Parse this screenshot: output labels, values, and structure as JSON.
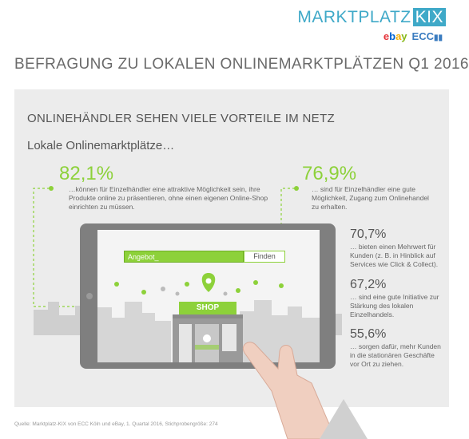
{
  "logo": {
    "title": "MARKTPLATZ",
    "badge": "KIX",
    "ebay": [
      "e",
      "b",
      "a",
      "y"
    ],
    "ecc": "ECC"
  },
  "title": "BEFRAGUNG ZU LOKALEN ONLINEMARKTPLÄTZEN Q1 2016",
  "subtitle": "ONLINEHÄNDLER SEHEN VIELE VORTEILE IM NETZ",
  "lead": "Lokale Onlinemarktplätze…",
  "stats": [
    {
      "value": "82,1%",
      "text": "…können für Einzelhändler eine attraktive Möglichkeit sein, ihre Produkte online zu präsentieren, ohne einen eigenen Online-Shop einrichten zu müssen."
    },
    {
      "value": "76,9%",
      "text": "… sind für Einzelhändler eine gute Möglichkeit, Zugang zum Onlinehandel zu erhalten."
    },
    {
      "value": "70,7%",
      "text": "… bieten einen Mehrwert für Kunden (z. B. in Hinblick auf Services wie Click & Collect)."
    },
    {
      "value": "67,2%",
      "text": "… sind eine gute Initiative zur Stärkung des lokalen Einzelhandels."
    },
    {
      "value": "55,6%",
      "text": "… sorgen dafür, mehr Kunden in die stationären Geschäfte vor Ort zu ziehen."
    }
  ],
  "tablet": {
    "search_value": "Angebot_",
    "find_label": "Finden",
    "shop_label": "SHOP"
  },
  "source": "Quelle: Marktplatz-KIX von ECC Köln und eBay, 1. Quartal 2016, Stichprobengröße: 274",
  "colors": {
    "accent": "#8dd13a",
    "brand": "#3fa9c8",
    "panel": "#ececec"
  }
}
